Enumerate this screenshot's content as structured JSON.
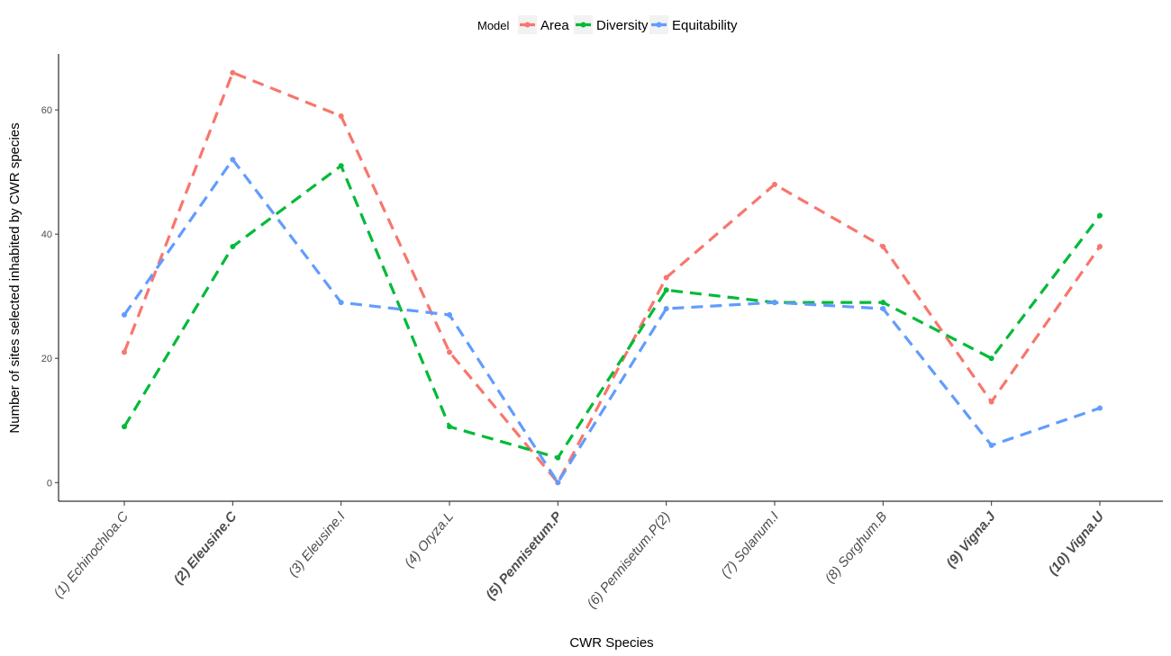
{
  "chart_data": {
    "type": "line",
    "xlabel": "CWR Species",
    "ylabel": "Number of sites selected inhabited by CWR species",
    "ylim": [
      -3,
      69
    ],
    "yticks": [
      0,
      20,
      40,
      60
    ],
    "grid": false,
    "legend": {
      "title": "Model",
      "position": "top"
    },
    "categories": [
      "(1) Echinochloa.C",
      "(2) Eleusine.C",
      "(3) Eleusine.I",
      "(4) Oryza.L",
      "(5) Pennisetum.P",
      "(6) Pennisetum.P(2)",
      "(7) Solanum.I",
      "(8) Sorghum.B",
      "(9) Vigna.J",
      "(10) Vigna.U"
    ],
    "bold_categories": [
      "(2) Eleusine.C",
      "(5) Pennisetum.P",
      "(9) Vigna.J",
      "(10) Vigna.U"
    ],
    "series": [
      {
        "name": "Area",
        "color": "#F8766D",
        "values": [
          21,
          66,
          59,
          21,
          0,
          33,
          48,
          38,
          13,
          38
        ]
      },
      {
        "name": "Diversity",
        "color": "#00BA38",
        "values": [
          9,
          38,
          51,
          9,
          4,
          31,
          29,
          29,
          20,
          43
        ]
      },
      {
        "name": "Equitability",
        "color": "#619CFF",
        "values": [
          27,
          52,
          29,
          27,
          0,
          28,
          29,
          28,
          6,
          12
        ]
      }
    ]
  }
}
